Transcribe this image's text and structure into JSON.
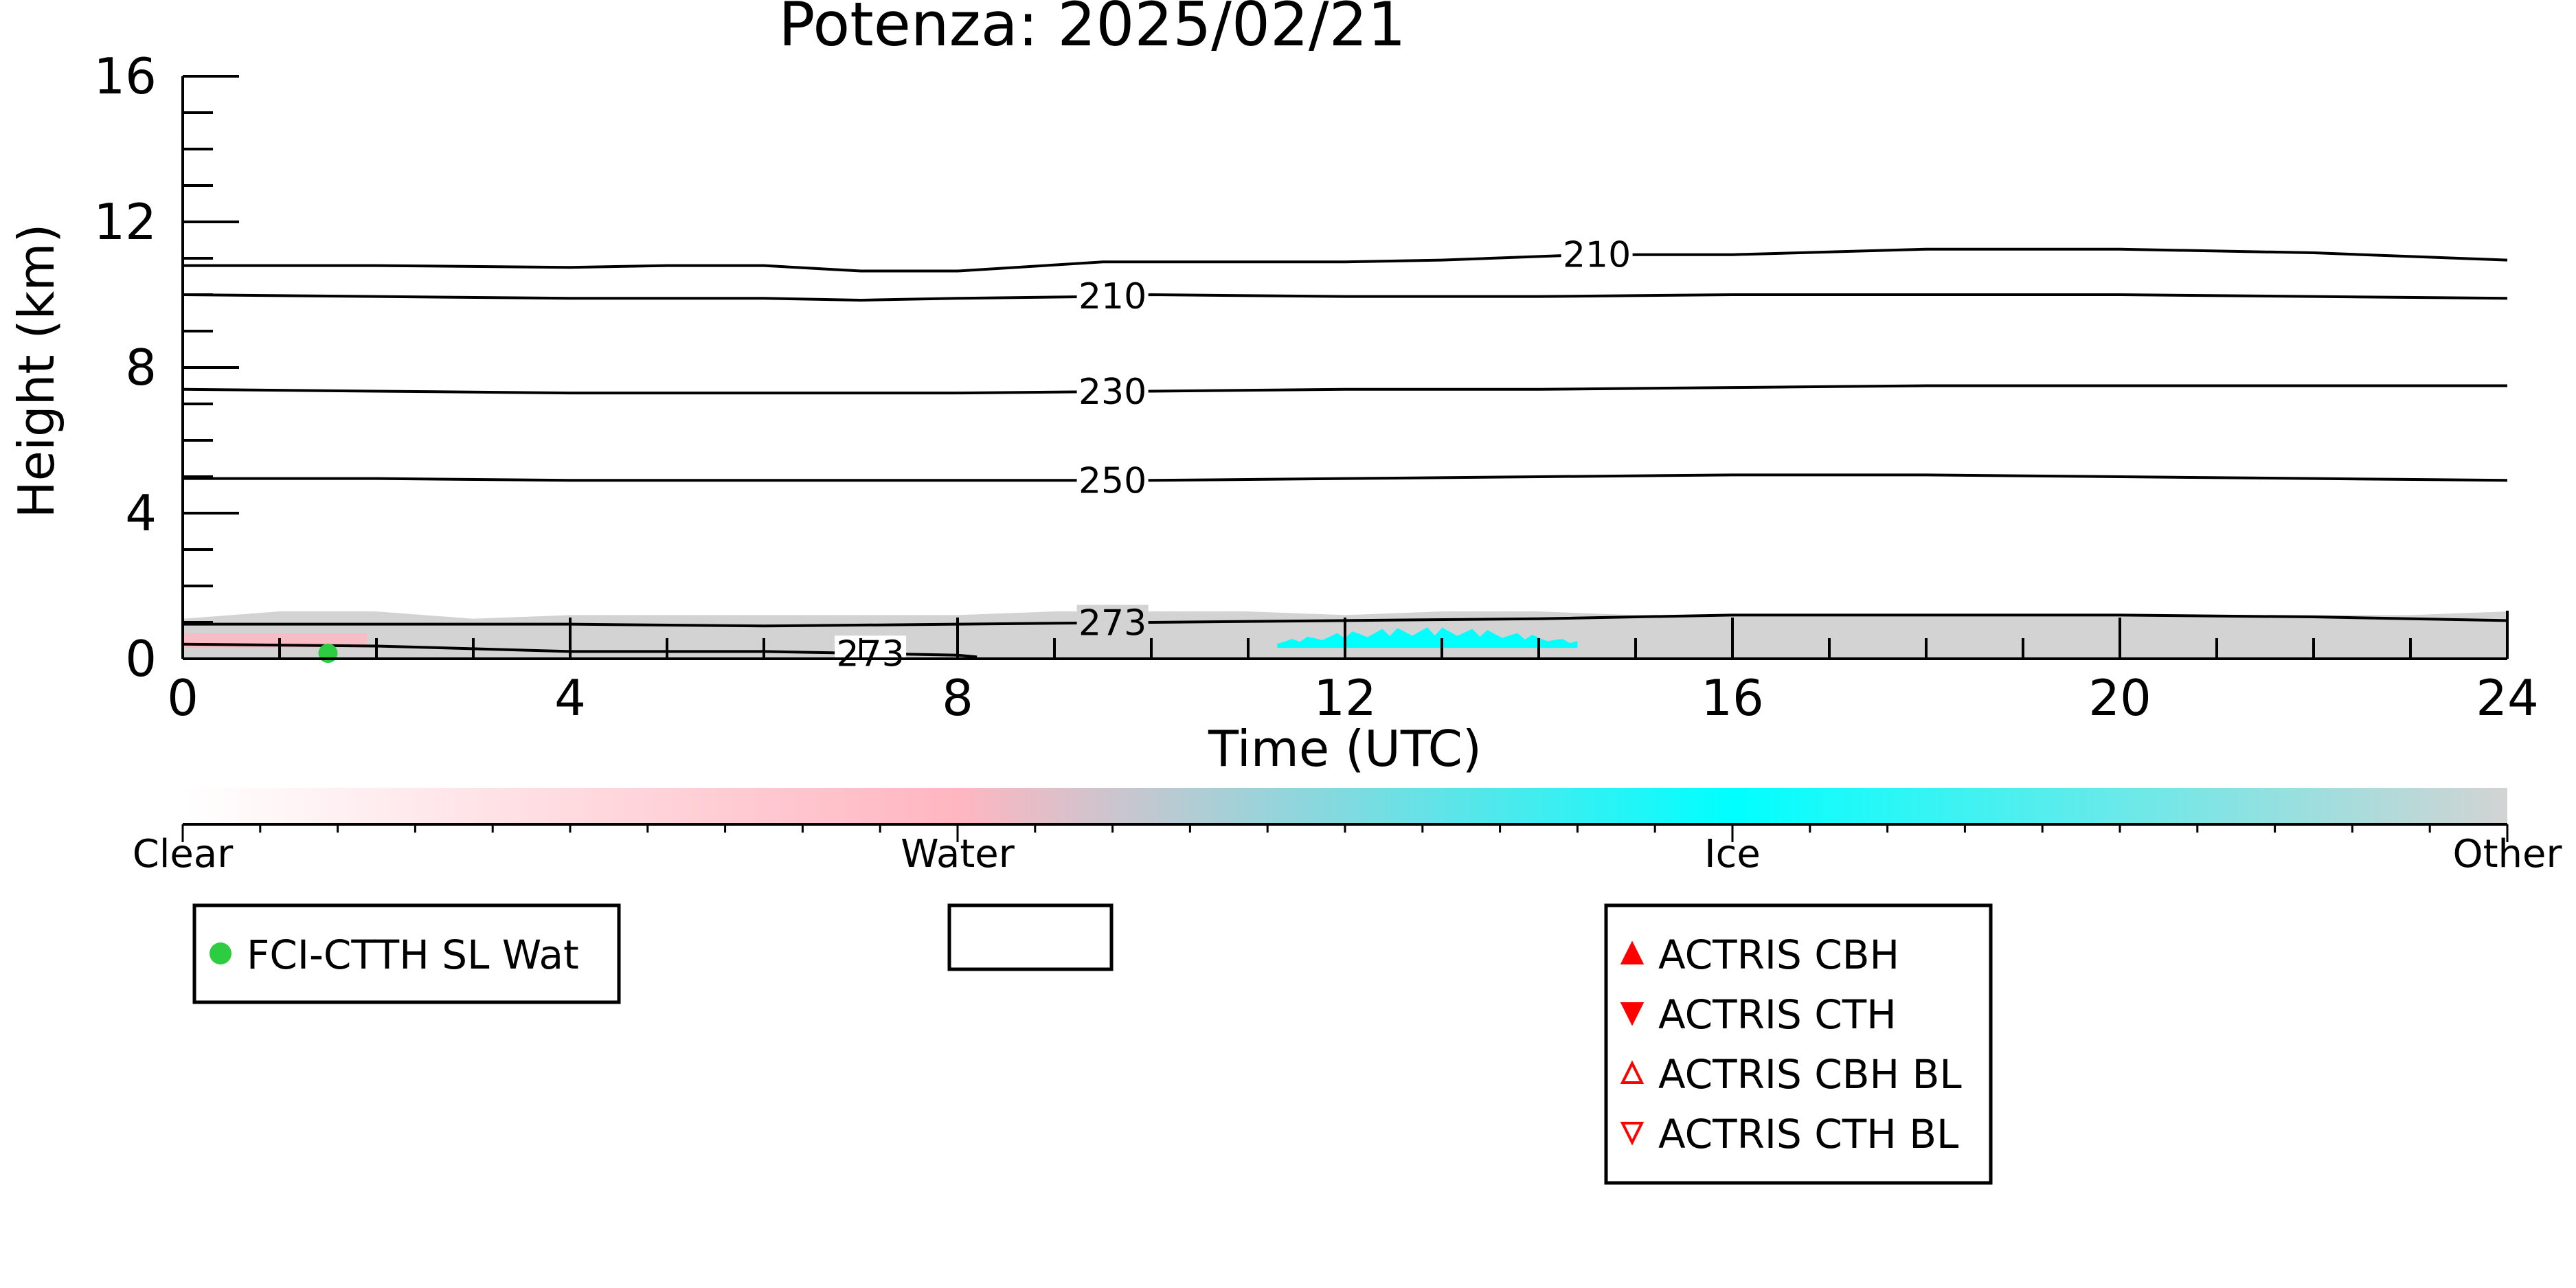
{
  "chart_data": {
    "type": "area",
    "title": "Potenza: 2025/02/21",
    "xlabel": "Time (UTC)",
    "ylabel": "Height (km)",
    "xlim": [
      0,
      24
    ],
    "ylim": [
      0,
      16
    ],
    "x_ticks": [
      0,
      4,
      8,
      12,
      16,
      20,
      24
    ],
    "y_ticks": [
      0,
      4,
      8,
      12,
      16
    ],
    "x_minor_step": 1,
    "y_minor_step": 1,
    "grid": false,
    "cloud_layer": {
      "phase": "Other",
      "base_km": 0,
      "top_km": [
        1.1,
        1.3,
        1.3,
        1.1,
        1.2,
        1.2,
        1.2,
        1.2,
        1.2,
        1.3,
        1.3,
        1.3,
        1.2,
        1.3,
        1.3,
        1.2,
        1.2,
        1.2,
        1.2,
        1.2,
        1.2,
        1.2,
        1.2,
        1.2,
        1.3
      ]
    },
    "ice_patch": {
      "phase": "Ice",
      "x_start": 11.3,
      "x_end": 14.4,
      "height_km": [
        0.3,
        0.8
      ]
    },
    "water_patch": {
      "phase": "Water",
      "x_start": 0.0,
      "x_end": 1.9,
      "height_km": [
        0.3,
        0.7
      ]
    },
    "temperature_contours": [
      {
        "label": "210",
        "x": [
          0,
          2,
          4,
          5,
          6,
          7,
          8,
          9.5,
          10,
          12,
          13,
          14.5,
          16,
          18,
          19,
          20,
          22,
          24
        ],
        "y": [
          10.8,
          10.8,
          10.75,
          10.8,
          10.8,
          10.65,
          10.65,
          10.9,
          10.9,
          10.9,
          10.95,
          11.1,
          11.1,
          11.25,
          11.25,
          11.25,
          11.15,
          10.95
        ],
        "label_at": 14.6
      },
      {
        "label": "210",
        "x": [
          0,
          2,
          4,
          6,
          7,
          8,
          9.5,
          10,
          12,
          14,
          16,
          18,
          20,
          22,
          24
        ],
        "y": [
          10.0,
          9.95,
          9.9,
          9.9,
          9.85,
          9.9,
          9.95,
          10.0,
          9.95,
          9.95,
          10.0,
          10.0,
          10.0,
          9.95,
          9.9
        ],
        "label_at": 9.6
      },
      {
        "label": "230",
        "x": [
          0,
          2,
          4,
          6,
          8,
          10,
          12,
          14,
          16,
          18,
          20,
          22,
          24
        ],
        "y": [
          7.4,
          7.35,
          7.3,
          7.3,
          7.3,
          7.35,
          7.4,
          7.4,
          7.45,
          7.5,
          7.5,
          7.5,
          7.5
        ],
        "label_at": 9.6
      },
      {
        "label": "250",
        "x": [
          0,
          2,
          4,
          6,
          8,
          10,
          12,
          14,
          16,
          18,
          20,
          22,
          24
        ],
        "y": [
          4.95,
          4.95,
          4.9,
          4.9,
          4.9,
          4.9,
          4.95,
          5.0,
          5.05,
          5.05,
          5.0,
          4.95,
          4.9
        ],
        "label_at": 9.6
      },
      {
        "label": "273",
        "x": [
          0,
          2,
          4,
          6,
          8,
          10,
          12,
          14,
          16,
          18,
          20,
          22,
          24
        ],
        "y": [
          0.95,
          0.95,
          0.95,
          0.9,
          0.95,
          1.0,
          1.05,
          1.1,
          1.2,
          1.2,
          1.2,
          1.15,
          1.05
        ],
        "label_at": 9.6
      },
      {
        "label": "273",
        "x": [
          0,
          2,
          4,
          6,
          7,
          8,
          8.2
        ],
        "y": [
          0.4,
          0.35,
          0.2,
          0.2,
          0.15,
          0.1,
          0.05
        ],
        "label_at": 7.1
      }
    ],
    "markers": [
      {
        "series": "FCI-CTTH SL Wat",
        "x": 1.5,
        "y": 0.15
      }
    ],
    "colorbar": {
      "labels": [
        "Clear",
        "Water",
        "Ice",
        "Other"
      ],
      "stops": [
        "#ffffff",
        "#ffb6c1",
        "#00ffff",
        "#d3d3d3"
      ]
    },
    "legends": [
      {
        "entries": [
          {
            "name": "FCI-CTTH SL Wat",
            "marker": "filled-circle",
            "color": "#2ecc40"
          }
        ]
      },
      {
        "entries": []
      },
      {
        "entries": [
          {
            "name": "ACTRIS CBH",
            "marker": "filled-triangle-up",
            "color": "#ff0000"
          },
          {
            "name": "ACTRIS CTH",
            "marker": "filled-triangle-down",
            "color": "#ff0000"
          },
          {
            "name": "ACTRIS CBH BL",
            "marker": "open-triangle-up",
            "color": "#ff0000"
          },
          {
            "name": "ACTRIS CTH BL",
            "marker": "open-triangle-down",
            "color": "#ff0000"
          }
        ]
      }
    ]
  }
}
